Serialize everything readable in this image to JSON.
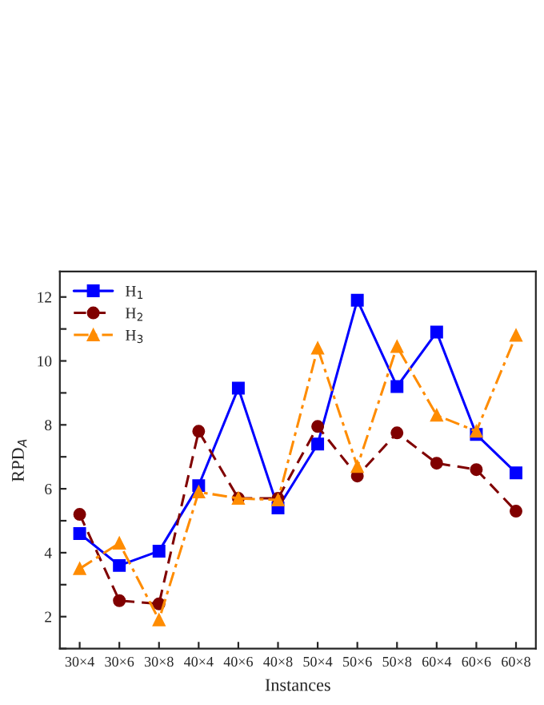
{
  "chart_data": {
    "type": "line",
    "xlabel": "Instances",
    "ylabel": "RPD$_{A}$",
    "categories": [
      "30×4",
      "30×6",
      "30×8",
      "40×4",
      "40×6",
      "40×8",
      "50×4",
      "50×6",
      "50×8",
      "60×4",
      "60×6",
      "60×8"
    ],
    "series": [
      {
        "name": "H$_{1}$",
        "color": "#0000ff",
        "marker": "square",
        "line_style": "solid",
        "values": [
          4.6,
          3.6,
          4.05,
          6.1,
          9.15,
          5.4,
          7.4,
          11.9,
          9.2,
          10.9,
          7.7,
          6.5
        ]
      },
      {
        "name": "H$_{2}$",
        "color": "#800000",
        "marker": "circle",
        "line_style": "dashed",
        "values": [
          5.2,
          2.5,
          2.4,
          7.8,
          5.7,
          5.7,
          7.95,
          6.4,
          7.75,
          6.8,
          6.6,
          5.3
        ]
      },
      {
        "name": "H$_{3}$",
        "color": "#ff8c00",
        "marker": "triangle",
        "line_style": "dashdot",
        "values": [
          3.5,
          4.3,
          1.9,
          5.9,
          5.7,
          5.65,
          10.4,
          6.7,
          10.45,
          8.3,
          7.8,
          10.8
        ]
      }
    ],
    "ylim": [
      1,
      12.8
    ],
    "yticks": [
      {
        "value": 1,
        "label": null
      },
      2,
      {
        "value": 3,
        "label": null
      },
      4,
      {
        "value": 5,
        "label": null
      },
      6,
      {
        "value": 7,
        "label": null
      },
      8,
      {
        "value": 9,
        "label": null
      },
      10,
      {
        "value": 11,
        "label": null
      },
      12
    ],
    "grid": false,
    "legend": "top left"
  }
}
